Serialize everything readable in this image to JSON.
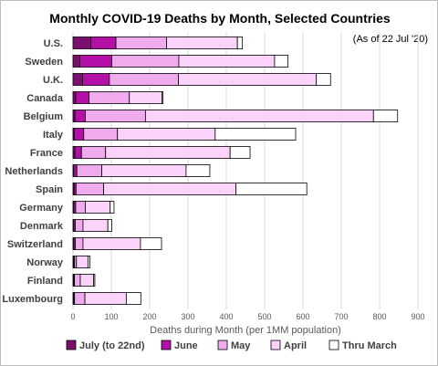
{
  "chart_data": {
    "type": "bar",
    "orientation": "horizontal",
    "stacked": true,
    "title": "Monthly COVID-19 Deaths by Month, Selected Countries",
    "annotation": "(As of 22 Jul '20)",
    "xlabel": "Deaths during Month (per 1MM population)",
    "ylabel": "",
    "xlim": [
      0,
      900
    ],
    "xticks": [
      0,
      100,
      200,
      300,
      400,
      500,
      600,
      700,
      800,
      900
    ],
    "grid": true,
    "legend_position": "bottom",
    "categories": [
      "U.S.",
      "Sweden",
      "U.K.",
      "Canada",
      "Belgium",
      "Italy",
      "France",
      "Netherlands",
      "Spain",
      "Germany",
      "Denmark",
      "Switzerland",
      "Norway",
      "Finland",
      "Luxembourg"
    ],
    "series": [
      {
        "name": "July (to 22nd)",
        "color": "#7a0f6e",
        "values": [
          47,
          18,
          25,
          7,
          5,
          3,
          5,
          2,
          3,
          2,
          2,
          2,
          2,
          2,
          2
        ]
      },
      {
        "name": "June",
        "color": "#b40fa6",
        "values": [
          65,
          83,
          70,
          35,
          27,
          25,
          17,
          8,
          5,
          5,
          4,
          4,
          2,
          2,
          2
        ]
      },
      {
        "name": "May",
        "color": "#f0aaee",
        "values": [
          132,
          175,
          180,
          105,
          157,
          88,
          63,
          65,
          72,
          25,
          20,
          20,
          5,
          15,
          27
        ]
      },
      {
        "name": "April",
        "color": "#fad2fa",
        "values": [
          185,
          250,
          360,
          85,
          595,
          255,
          325,
          220,
          345,
          65,
          65,
          150,
          30,
          35,
          108
        ]
      },
      {
        "name": "Thru March",
        "color": "#ffffff",
        "values": [
          13,
          35,
          37,
          3,
          63,
          210,
          52,
          62,
          185,
          10,
          10,
          55,
          5,
          3,
          38
        ]
      }
    ]
  }
}
